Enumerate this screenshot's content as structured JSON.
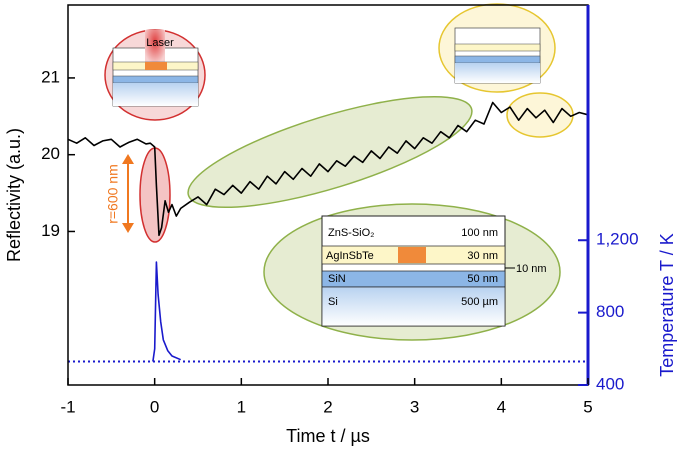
{
  "chart_data": {
    "type": "line",
    "xlabel": "Time t / µs",
    "ylabel": "Reflectivity (a.u.)",
    "y2label": "Temperature T / K",
    "xlim": [
      -1,
      5
    ],
    "xticks": [
      -1,
      0,
      1,
      2,
      3,
      4,
      5
    ],
    "ylim": [
      17.0,
      21.95
    ],
    "yticks": [
      19,
      20,
      21
    ],
    "y2lim": [
      400,
      2500
    ],
    "y2ticks": [
      400,
      800,
      {
        "value": 1200,
        "label": "1,200"
      }
    ],
    "series": [
      {
        "color": "#000000",
        "x": [
          -1,
          -0.9,
          -0.8,
          -0.7,
          -0.6,
          -0.5,
          -0.4,
          -0.3,
          -0.2,
          -0.1,
          -0.05,
          0,
          0.02,
          0.05,
          0.08,
          0.12,
          0.16,
          0.2,
          0.25,
          0.3,
          0.4,
          0.5,
          0.6,
          0.7,
          0.8,
          0.9,
          1.0,
          1.1,
          1.2,
          1.3,
          1.4,
          1.5,
          1.6,
          1.7,
          1.8,
          1.9,
          2.0,
          2.1,
          2.2,
          2.3,
          2.4,
          2.5,
          2.6,
          2.7,
          2.8,
          2.9,
          3.0,
          3.1,
          3.2,
          3.3,
          3.4,
          3.5,
          3.6,
          3.7,
          3.8,
          3.9,
          4.0,
          4.1,
          4.2,
          4.3,
          4.4,
          4.5,
          4.6,
          4.7,
          4.8,
          4.9,
          5.0
        ],
        "values": [
          20.2,
          20.15,
          20.22,
          20.12,
          20.18,
          20.2,
          20.1,
          20.16,
          20.2,
          20.14,
          20.15,
          20.1,
          19.6,
          18.95,
          19.05,
          19.4,
          19.25,
          19.35,
          19.2,
          19.3,
          19.38,
          19.45,
          19.35,
          19.55,
          19.48,
          19.6,
          19.5,
          19.65,
          19.55,
          19.72,
          19.62,
          19.78,
          19.68,
          19.82,
          19.72,
          19.88,
          19.78,
          19.92,
          19.85,
          19.98,
          19.9,
          20.05,
          19.95,
          20.1,
          20.02,
          20.18,
          20.08,
          20.22,
          20.15,
          20.3,
          20.22,
          20.38,
          20.3,
          20.45,
          20.4,
          20.68,
          20.55,
          20.62,
          20.45,
          20.6,
          20.48,
          20.58,
          20.42,
          20.6,
          20.5,
          20.55,
          20.52
        ]
      },
      {
        "color": "#1a1acc",
        "axis": "y2",
        "x": [
          -0.02,
          0,
          0.02,
          0.04,
          0.07,
          0.1,
          0.15,
          0.2,
          0.3
        ],
        "values": [
          530,
          600,
          1080,
          900,
          750,
          650,
          590,
          560,
          540
        ]
      },
      {
        "color": "#1a1acc",
        "axis": "y2",
        "dotted": true,
        "x": [
          -1,
          5
        ],
        "values": [
          530,
          530
        ]
      }
    ],
    "annotations": {
      "laser": "Laser",
      "radius": "r=600 nm",
      "layer1": "ZnS-SiO₂",
      "layer1_thickness": "100 nm",
      "layer2": "AgInSbTe",
      "layer2_thickness": "30 nm",
      "layer3": "SiN",
      "layer3_thickness": "50 nm",
      "layer4": "Si",
      "layer4_thickness": "500 µm",
      "gap": "10 nm"
    }
  }
}
